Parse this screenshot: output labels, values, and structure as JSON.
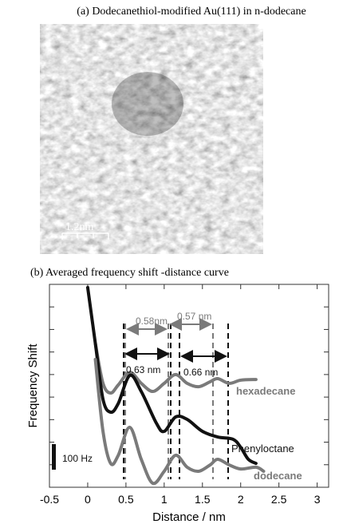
{
  "panel_a": {
    "title": "(a) Dodecanethiol-modified Au(111) in n-dodecane",
    "scale_bar_label": "1.2nm"
  },
  "chart_data": {
    "type": "line",
    "title": "(b) Averaged frequency shift -distance curve",
    "x_label": "Distance / nm",
    "y_label": "Frequency Shift",
    "xlim": [
      -0.5,
      3.15
    ],
    "xticks": [
      -0.5,
      0,
      0.5,
      1.0,
      1.5,
      2.0,
      2.5,
      3.0
    ],
    "ylim": [
      0,
      9
    ],
    "yticks": [
      1,
      2,
      3,
      4,
      5,
      6,
      7,
      8
    ],
    "series": [
      {
        "name": "hexadecane",
        "color": "#7a7a7a",
        "x": [
          0.1,
          0.2,
          0.3,
          0.4,
          0.55,
          0.7,
          0.85,
          1.0,
          1.15,
          1.3,
          1.45,
          1.6,
          1.7,
          1.85,
          2.0,
          2.2
        ],
        "values": [
          6.38,
          4.61,
          4.18,
          4.54,
          5.1,
          4.61,
          4.25,
          4.61,
          5.0,
          4.61,
          4.46,
          4.68,
          4.82,
          4.61,
          4.75,
          4.78
        ]
      },
      {
        "name": "Phenyloctane",
        "color": "#111111",
        "x": [
          0,
          0.1,
          0.2,
          0.3,
          0.4,
          0.55,
          0.7,
          0.9,
          1.0,
          1.15,
          1.3,
          1.5,
          1.7,
          1.9,
          2.0,
          2.1,
          2.2
        ],
        "values": [
          8.86,
          6.38,
          3.9,
          3.33,
          3.72,
          4.96,
          4.25,
          2.83,
          2.48,
          3.12,
          3.01,
          2.48,
          2.23,
          2.13,
          1.77,
          1.24,
          1.06
        ]
      },
      {
        "name": "dodecane",
        "color": "#7a7a7a",
        "x": [
          0.1,
          0.2,
          0.3,
          0.4,
          0.55,
          0.7,
          0.85,
          1.0,
          1.15,
          1.3,
          1.45,
          1.6,
          1.7,
          1.85,
          2.0,
          2.2,
          2.3
        ],
        "values": [
          5.67,
          2.48,
          1.06,
          1.42,
          2.66,
          1.24,
          0.18,
          0.71,
          1.42,
          0.89,
          0.71,
          0.99,
          1.24,
          0.99,
          0.81,
          0.89,
          0.71
        ]
      }
    ],
    "annotations": [
      "0.58nm",
      "0.57 nm",
      "0.63 nm",
      "0.66 nm",
      "100 Hz"
    ]
  }
}
